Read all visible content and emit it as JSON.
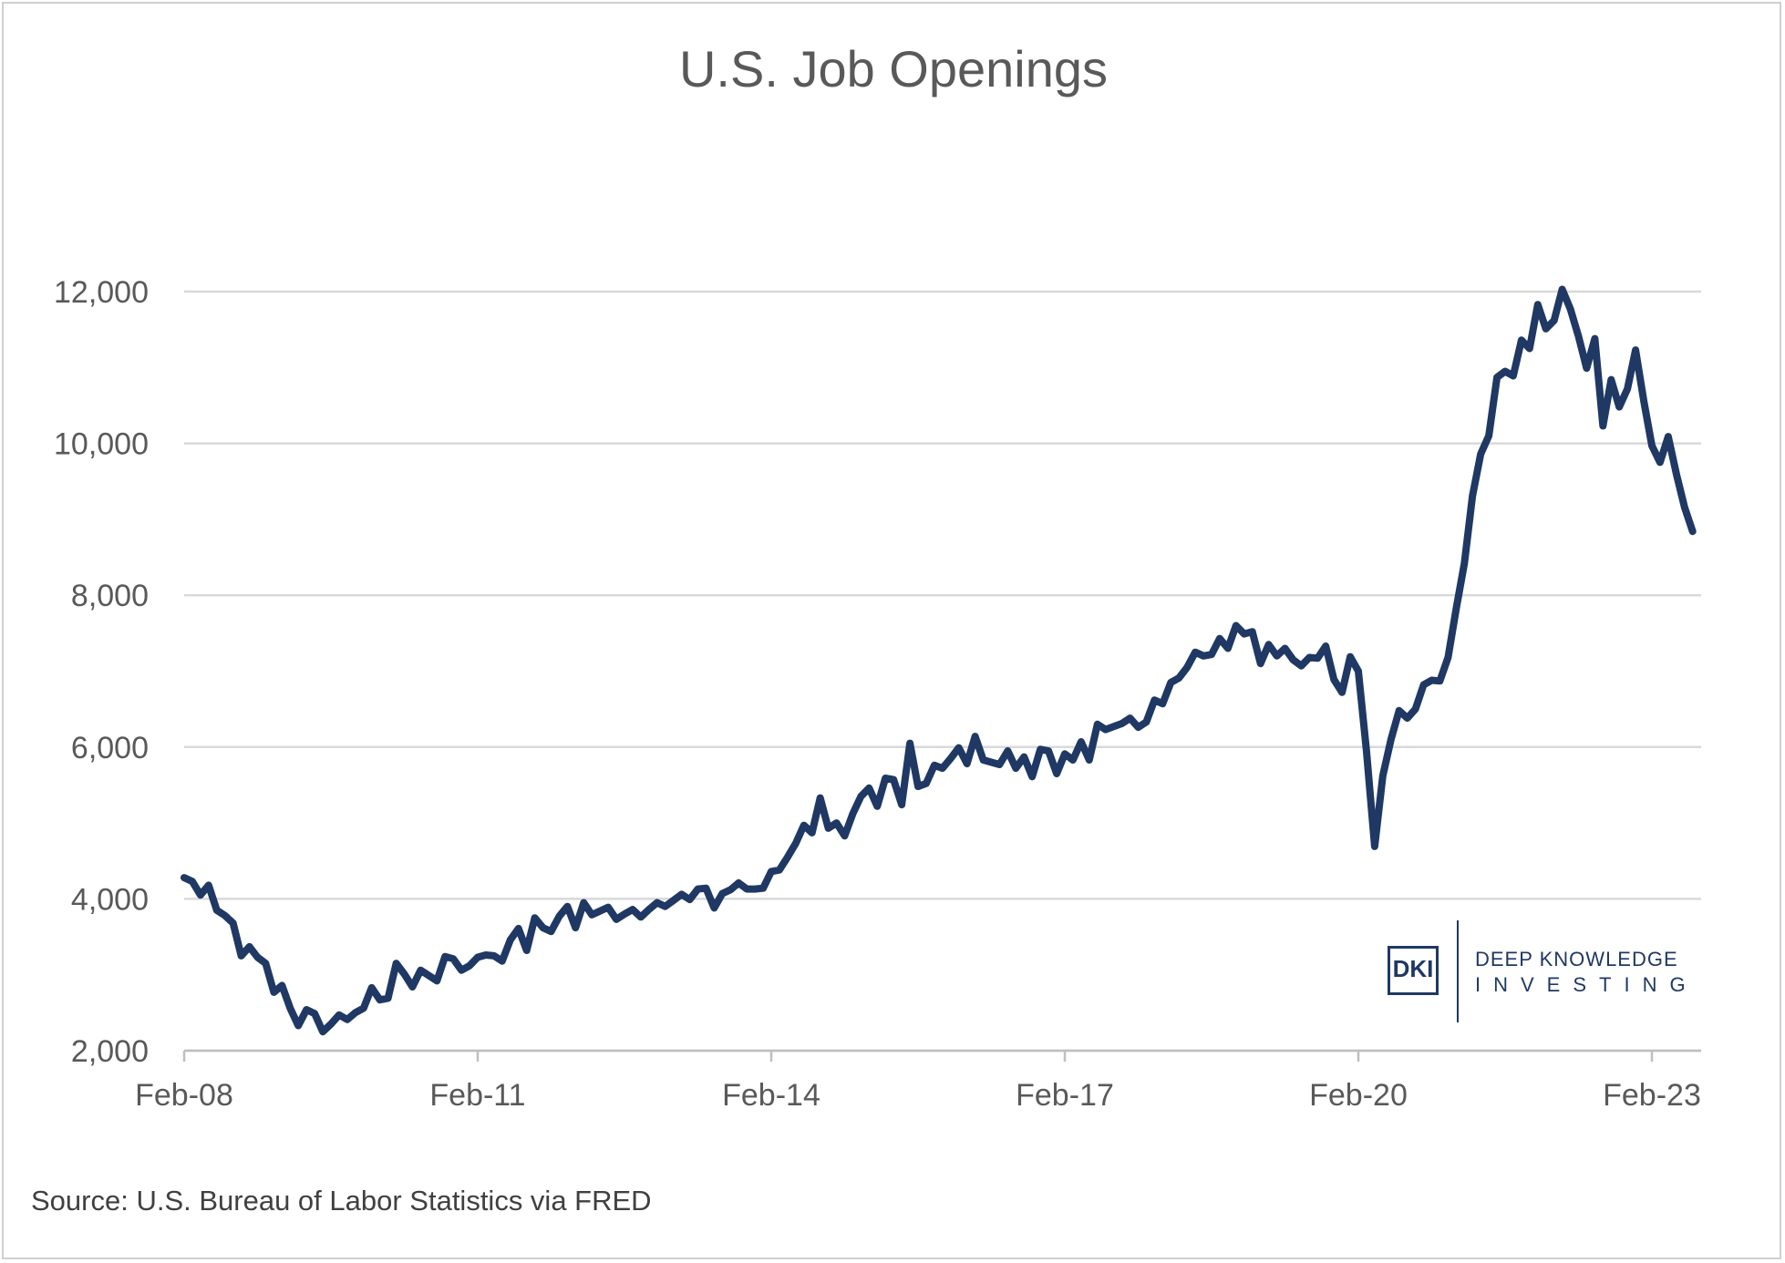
{
  "chart_data": {
    "type": "line",
    "title": "U.S. Job Openings",
    "xlabel": "",
    "ylabel": "",
    "ylim": [
      2000,
      12000
    ],
    "y_ticks": [
      "2,000",
      "4,000",
      "6,000",
      "8,000",
      "10,000",
      "12,000"
    ],
    "y_tick_values": [
      2000,
      4000,
      6000,
      8000,
      10000,
      12000
    ],
    "x_ticks": [
      "Feb-08",
      "Feb-11",
      "Feb-14",
      "Feb-17",
      "Feb-20",
      "Feb-23"
    ],
    "grid": true,
    "line_color": "#1f3864",
    "grid_color": "#d9d9d9",
    "series": [
      {
        "x": [
          "2008-02",
          "2008-03",
          "2008-04",
          "2008-05",
          "2008-06",
          "2008-07",
          "2008-08",
          "2008-09",
          "2008-10",
          "2008-11",
          "2008-12",
          "2009-01",
          "2009-02",
          "2009-03",
          "2009-04",
          "2009-05",
          "2009-06",
          "2009-07",
          "2009-08",
          "2009-09",
          "2009-10",
          "2009-11",
          "2009-12",
          "2010-01",
          "2010-02",
          "2010-03",
          "2010-04",
          "2010-05",
          "2010-06",
          "2010-07",
          "2010-08",
          "2010-09",
          "2010-10",
          "2010-11",
          "2010-12",
          "2011-01",
          "2011-02",
          "2011-03",
          "2011-04",
          "2011-05",
          "2011-06",
          "2011-07",
          "2011-08",
          "2011-09",
          "2011-10",
          "2011-11",
          "2011-12",
          "2012-01",
          "2012-02",
          "2012-03",
          "2012-04",
          "2012-05",
          "2012-06",
          "2012-07",
          "2012-08",
          "2012-09",
          "2012-10",
          "2012-11",
          "2012-12",
          "2013-01",
          "2013-02",
          "2013-03",
          "2013-04",
          "2013-05",
          "2013-06",
          "2013-07",
          "2013-08",
          "2013-09",
          "2013-10",
          "2013-11",
          "2013-12",
          "2014-01",
          "2014-02",
          "2014-03",
          "2014-04",
          "2014-05",
          "2014-06",
          "2014-07",
          "2014-08",
          "2014-09",
          "2014-10",
          "2014-11",
          "2014-12",
          "2015-01",
          "2015-02",
          "2015-03",
          "2015-04",
          "2015-05",
          "2015-06",
          "2015-07",
          "2015-08",
          "2015-09",
          "2015-10",
          "2015-11",
          "2015-12",
          "2016-01",
          "2016-02",
          "2016-03",
          "2016-04",
          "2016-05",
          "2016-06",
          "2016-07",
          "2016-08",
          "2016-09",
          "2016-10",
          "2016-11",
          "2016-12",
          "2017-01",
          "2017-02",
          "2017-03",
          "2017-04",
          "2017-05",
          "2017-06",
          "2017-07",
          "2017-08",
          "2017-09",
          "2017-10",
          "2017-11",
          "2017-12",
          "2018-01",
          "2018-02",
          "2018-03",
          "2018-04",
          "2018-05",
          "2018-06",
          "2018-07",
          "2018-08",
          "2018-09",
          "2018-10",
          "2018-11",
          "2018-12",
          "2019-01",
          "2019-02",
          "2019-03",
          "2019-04",
          "2019-05",
          "2019-06",
          "2019-07",
          "2019-08",
          "2019-09",
          "2019-10",
          "2019-11",
          "2019-12",
          "2020-01",
          "2020-02",
          "2020-03",
          "2020-04",
          "2020-05",
          "2020-06",
          "2020-07",
          "2020-08",
          "2020-09",
          "2020-10",
          "2020-11",
          "2020-12",
          "2021-01",
          "2021-02",
          "2021-03",
          "2021-04",
          "2021-05",
          "2021-06",
          "2021-07",
          "2021-08",
          "2021-09",
          "2021-10",
          "2021-11",
          "2021-12",
          "2022-01",
          "2022-02",
          "2022-03",
          "2022-04",
          "2022-05",
          "2022-06",
          "2022-07",
          "2022-08",
          "2022-09",
          "2022-10",
          "2022-11",
          "2022-12",
          "2023-01",
          "2023-02",
          "2023-03",
          "2023-04",
          "2023-05",
          "2023-06",
          "2023-07"
        ],
        "values": [
          4280,
          4230,
          4050,
          4180,
          3850,
          3780,
          3680,
          3250,
          3370,
          3230,
          3150,
          2770,
          2860,
          2560,
          2330,
          2540,
          2490,
          2250,
          2350,
          2470,
          2410,
          2500,
          2560,
          2830,
          2670,
          2690,
          3150,
          3010,
          2840,
          3060,
          2990,
          2920,
          3240,
          3210,
          3060,
          3120,
          3230,
          3260,
          3250,
          3180,
          3460,
          3610,
          3320,
          3750,
          3620,
          3570,
          3770,
          3900,
          3620,
          3950,
          3790,
          3840,
          3890,
          3730,
          3800,
          3860,
          3760,
          3860,
          3950,
          3900,
          3980,
          4060,
          3990,
          4130,
          4140,
          3880,
          4070,
          4120,
          4210,
          4130,
          4130,
          4140,
          4360,
          4380,
          4550,
          4730,
          4970,
          4870,
          5330,
          4930,
          5000,
          4830,
          5120,
          5350,
          5460,
          5220,
          5590,
          5570,
          5240,
          6050,
          5480,
          5520,
          5760,
          5720,
          5850,
          5990,
          5780,
          6140,
          5830,
          5800,
          5770,
          5950,
          5720,
          5870,
          5610,
          5970,
          5950,
          5650,
          5910,
          5830,
          6070,
          5830,
          6300,
          6230,
          6270,
          6310,
          6380,
          6260,
          6330,
          6620,
          6570,
          6850,
          6910,
          7050,
          7250,
          7200,
          7220,
          7430,
          7300,
          7600,
          7490,
          7520,
          7100,
          7350,
          7200,
          7300,
          7150,
          7070,
          7180,
          7170,
          7330,
          6890,
          6720,
          7190,
          7000,
          5950,
          4690,
          5620,
          6100,
          6480,
          6380,
          6500,
          6820,
          6880,
          6870,
          7180,
          7820,
          8420,
          9310,
          9860,
          10100,
          10870,
          10950,
          10890,
          11360,
          11250,
          11830,
          11510,
          11620,
          12030,
          11770,
          11410,
          10990,
          11380,
          10230,
          10840,
          10480,
          10720,
          11230,
          10560,
          9970,
          9750,
          10090,
          9600,
          9160,
          8840
        ]
      }
    ]
  },
  "source": "Source: U.S. Bureau of Labor Statistics via FRED",
  "logo": {
    "mark": "DKI",
    "line1": "DEEP KNOWLEDGE",
    "line2": "INVESTING"
  }
}
